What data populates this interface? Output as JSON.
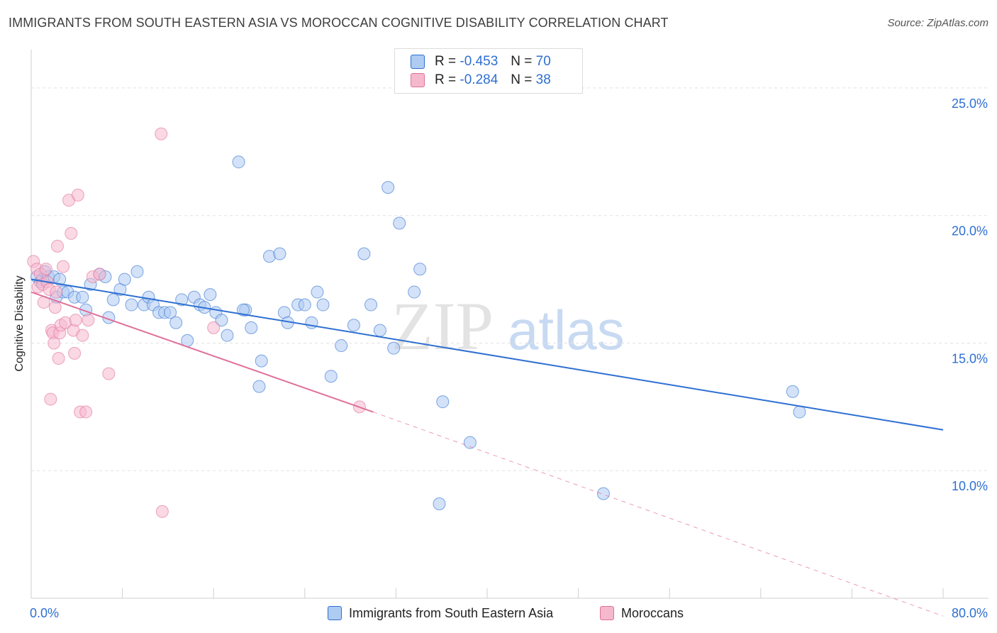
{
  "header": {
    "title": "IMMIGRANTS FROM SOUTH EASTERN ASIA VS MOROCCAN COGNITIVE DISABILITY CORRELATION CHART",
    "source": "Source: ZipAtlas.com"
  },
  "watermark": {
    "zip": "ZIP",
    "atlas": "atlas"
  },
  "legend": {
    "rows": [
      {
        "r_label": "R =",
        "r_value": "-0.453",
        "n_label": "N =",
        "n_value": "70"
      },
      {
        "r_label": "R =",
        "r_value": "-0.284",
        "n_label": "N =",
        "n_value": "38"
      }
    ]
  },
  "chart_data": {
    "type": "scatter",
    "title": "IMMIGRANTS FROM SOUTH EASTERN ASIA VS MOROCCAN COGNITIVE DISABILITY CORRELATION CHART",
    "xlabel": "",
    "ylabel": "Cognitive Disability",
    "xlim": [
      0,
      80
    ],
    "ylim": [
      5,
      26.5
    ],
    "x_tick_labels": [
      "0.0%",
      "80.0%"
    ],
    "y_ticks": [
      10,
      15,
      20,
      25
    ],
    "y_tick_labels": [
      "10.0%",
      "15.0%",
      "20.0%",
      "25.0%"
    ],
    "grid": true,
    "legend_position": "top-center",
    "colors": {
      "blue": "#2e6fd1",
      "blue_fill": "#aecbf2",
      "pink": "#e0709a",
      "pink_fill": "#f5b8cd"
    },
    "series": [
      {
        "name": "Immigrants from South Eastern Asia",
        "color": "#2e6fd1",
        "trend": {
          "x0": 0,
          "y0": 17.5,
          "x1": 80,
          "y1": 11.6
        },
        "points": [
          [
            0.5,
            17.6
          ],
          [
            0.8,
            17.4
          ],
          [
            1.0,
            17.5
          ],
          [
            1.2,
            17.8
          ],
          [
            1.5,
            17.6
          ],
          [
            2.0,
            17.6
          ],
          [
            2.5,
            17.5
          ],
          [
            2.2,
            16.8
          ],
          [
            2.8,
            17.0
          ],
          [
            3.2,
            17.0
          ],
          [
            3.8,
            16.8
          ],
          [
            4.5,
            16.8
          ],
          [
            4.8,
            16.3
          ],
          [
            5.2,
            17.3
          ],
          [
            6.0,
            17.7
          ],
          [
            6.5,
            17.6
          ],
          [
            6.8,
            16.0
          ],
          [
            7.2,
            16.7
          ],
          [
            7.8,
            17.1
          ],
          [
            8.2,
            17.5
          ],
          [
            8.8,
            16.5
          ],
          [
            9.3,
            17.8
          ],
          [
            9.9,
            16.5
          ],
          [
            10.3,
            16.8
          ],
          [
            10.7,
            16.5
          ],
          [
            11.2,
            16.2
          ],
          [
            11.7,
            16.2
          ],
          [
            12.2,
            16.2
          ],
          [
            12.7,
            15.8
          ],
          [
            13.2,
            16.7
          ],
          [
            13.7,
            15.1
          ],
          [
            14.3,
            16.8
          ],
          [
            14.8,
            16.5
          ],
          [
            15.2,
            16.4
          ],
          [
            15.7,
            16.9
          ],
          [
            16.2,
            16.2
          ],
          [
            16.7,
            15.9
          ],
          [
            17.2,
            15.3
          ],
          [
            18.2,
            22.1
          ],
          [
            18.8,
            16.3
          ],
          [
            19.3,
            15.6
          ],
          [
            20.2,
            14.3
          ],
          [
            20.9,
            18.4
          ],
          [
            21.8,
            18.5
          ],
          [
            22.2,
            16.2
          ],
          [
            22.5,
            15.8
          ],
          [
            23.4,
            16.5
          ],
          [
            24.0,
            16.5
          ],
          [
            24.6,
            15.8
          ],
          [
            25.1,
            17.0
          ],
          [
            25.6,
            16.5
          ],
          [
            26.3,
            13.7
          ],
          [
            27.2,
            14.9
          ],
          [
            28.3,
            15.7
          ],
          [
            29.2,
            18.5
          ],
          [
            29.8,
            16.5
          ],
          [
            30.6,
            15.5
          ],
          [
            31.3,
            21.1
          ],
          [
            31.8,
            14.8
          ],
          [
            32.3,
            19.7
          ],
          [
            33.6,
            17.0
          ],
          [
            34.1,
            17.9
          ],
          [
            35.8,
            8.7
          ],
          [
            36.1,
            12.7
          ],
          [
            38.5,
            11.1
          ],
          [
            20.0,
            13.3
          ],
          [
            18.6,
            16.3
          ],
          [
            50.2,
            9.1
          ],
          [
            66.8,
            13.1
          ],
          [
            67.4,
            12.3
          ]
        ]
      },
      {
        "name": "Moroccans",
        "color": "#e0709a",
        "trend": {
          "x0": 0,
          "y0": 17.0,
          "x1": 30,
          "y1": 12.3
        },
        "trend_dashed": {
          "x0": 30,
          "y0": 12.3,
          "x1": 80,
          "y1": 4.3
        },
        "points": [
          [
            0.2,
            18.2
          ],
          [
            0.5,
            17.9
          ],
          [
            0.6,
            17.2
          ],
          [
            0.8,
            17.7
          ],
          [
            1.0,
            17.3
          ],
          [
            1.1,
            16.6
          ],
          [
            1.4,
            17.4
          ],
          [
            1.6,
            17.1
          ],
          [
            1.7,
            12.8
          ],
          [
            1.8,
            15.5
          ],
          [
            1.9,
            15.4
          ],
          [
            2.0,
            15.0
          ],
          [
            2.1,
            16.4
          ],
          [
            2.3,
            18.8
          ],
          [
            2.4,
            14.4
          ],
          [
            2.5,
            15.4
          ],
          [
            2.6,
            15.7
          ],
          [
            2.8,
            18.0
          ],
          [
            3.0,
            15.8
          ],
          [
            3.3,
            20.6
          ],
          [
            3.5,
            19.3
          ],
          [
            3.7,
            15.5
          ],
          [
            3.8,
            14.6
          ],
          [
            3.9,
            15.9
          ],
          [
            4.1,
            20.8
          ],
          [
            4.3,
            12.3
          ],
          [
            4.5,
            15.3
          ],
          [
            4.8,
            12.3
          ],
          [
            5.0,
            15.9
          ],
          [
            5.4,
            17.6
          ],
          [
            6.0,
            17.7
          ],
          [
            6.8,
            13.8
          ],
          [
            11.5,
            8.4
          ],
          [
            11.4,
            23.2
          ],
          [
            16.0,
            15.6
          ],
          [
            28.8,
            12.5
          ],
          [
            1.3,
            17.9
          ],
          [
            2.2,
            17.0
          ]
        ]
      }
    ]
  },
  "bottom_legend": {
    "items": [
      "Immigrants from South Eastern Asia",
      "Moroccans"
    ]
  }
}
